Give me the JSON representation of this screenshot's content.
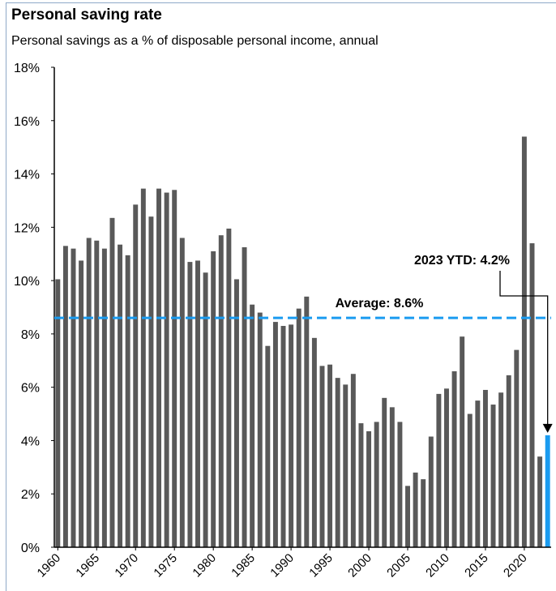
{
  "chart_data": {
    "type": "bar",
    "title": "Personal saving rate",
    "subtitle": "Personal savings as a % of disposable personal income, annual",
    "x": [
      1960,
      1961,
      1962,
      1963,
      1964,
      1965,
      1966,
      1967,
      1968,
      1969,
      1970,
      1971,
      1972,
      1973,
      1974,
      1975,
      1976,
      1977,
      1978,
      1979,
      1980,
      1981,
      1982,
      1983,
      1984,
      1985,
      1986,
      1987,
      1988,
      1989,
      1990,
      1991,
      1992,
      1993,
      1994,
      1995,
      1996,
      1997,
      1998,
      1999,
      2000,
      2001,
      2002,
      2003,
      2004,
      2005,
      2006,
      2007,
      2008,
      2009,
      2010,
      2011,
      2012,
      2013,
      2014,
      2015,
      2016,
      2017,
      2018,
      2019,
      2020,
      2021,
      2022,
      2023
    ],
    "values": [
      10.05,
      11.3,
      11.2,
      10.75,
      11.6,
      11.5,
      11.2,
      12.35,
      11.35,
      10.95,
      12.85,
      13.45,
      12.4,
      13.45,
      13.3,
      13.4,
      11.6,
      10.7,
      10.75,
      10.3,
      11.1,
      11.7,
      11.95,
      10.05,
      11.25,
      9.1,
      8.8,
      7.55,
      8.45,
      8.3,
      8.35,
      8.95,
      9.4,
      7.85,
      6.8,
      6.85,
      6.35,
      6.1,
      6.5,
      4.65,
      4.35,
      4.7,
      5.6,
      5.25,
      4.7,
      2.3,
      2.8,
      2.55,
      4.15,
      5.75,
      5.95,
      6.6,
      7.9,
      5.0,
      5.5,
      5.9,
      5.35,
      5.8,
      6.45,
      7.4,
      15.4,
      11.4,
      3.4,
      4.2
    ],
    "colors": [
      "#595959",
      "#595959",
      "#595959",
      "#595959",
      "#595959",
      "#595959",
      "#595959",
      "#595959",
      "#595959",
      "#595959",
      "#595959",
      "#595959",
      "#595959",
      "#595959",
      "#595959",
      "#595959",
      "#595959",
      "#595959",
      "#595959",
      "#595959",
      "#595959",
      "#595959",
      "#595959",
      "#595959",
      "#595959",
      "#595959",
      "#595959",
      "#595959",
      "#595959",
      "#595959",
      "#595959",
      "#595959",
      "#595959",
      "#595959",
      "#595959",
      "#595959",
      "#595959",
      "#595959",
      "#595959",
      "#595959",
      "#595959",
      "#595959",
      "#595959",
      "#595959",
      "#595959",
      "#595959",
      "#595959",
      "#595959",
      "#595959",
      "#595959",
      "#595959",
      "#595959",
      "#595959",
      "#595959",
      "#595959",
      "#595959",
      "#595959",
      "#595959",
      "#595959",
      "#595959",
      "#595959",
      "#595959",
      "#595959",
      "#1a9bf0"
    ],
    "xlim": [
      1959.55,
      2023.45
    ],
    "xticks": [
      1960,
      1965,
      1970,
      1975,
      1980,
      1985,
      1990,
      1995,
      2000,
      2005,
      2010,
      2015,
      2020
    ],
    "ylim": [
      0,
      18
    ],
    "yticks": [
      {
        "value": 0,
        "label": "0%"
      },
      {
        "value": 2,
        "label": "2%"
      },
      {
        "value": 4,
        "label": "4%"
      },
      {
        "value": 6,
        "label": "6%"
      },
      {
        "value": 8,
        "label": "8%"
      },
      {
        "value": 10,
        "label": "10%"
      },
      {
        "value": 12,
        "label": "12%"
      },
      {
        "value": 14,
        "label": "14%"
      },
      {
        "value": 16,
        "label": "16%"
      },
      {
        "value": 18,
        "label": "18%"
      }
    ],
    "grid": false,
    "average": {
      "label": "Average: 8.6%",
      "value": 8.6,
      "color": "#1a9bf0"
    },
    "annotation": {
      "text": "2023 YTD: 4.2%",
      "x": 2023,
      "value": 4.2,
      "color": "#1a9bf0"
    }
  }
}
